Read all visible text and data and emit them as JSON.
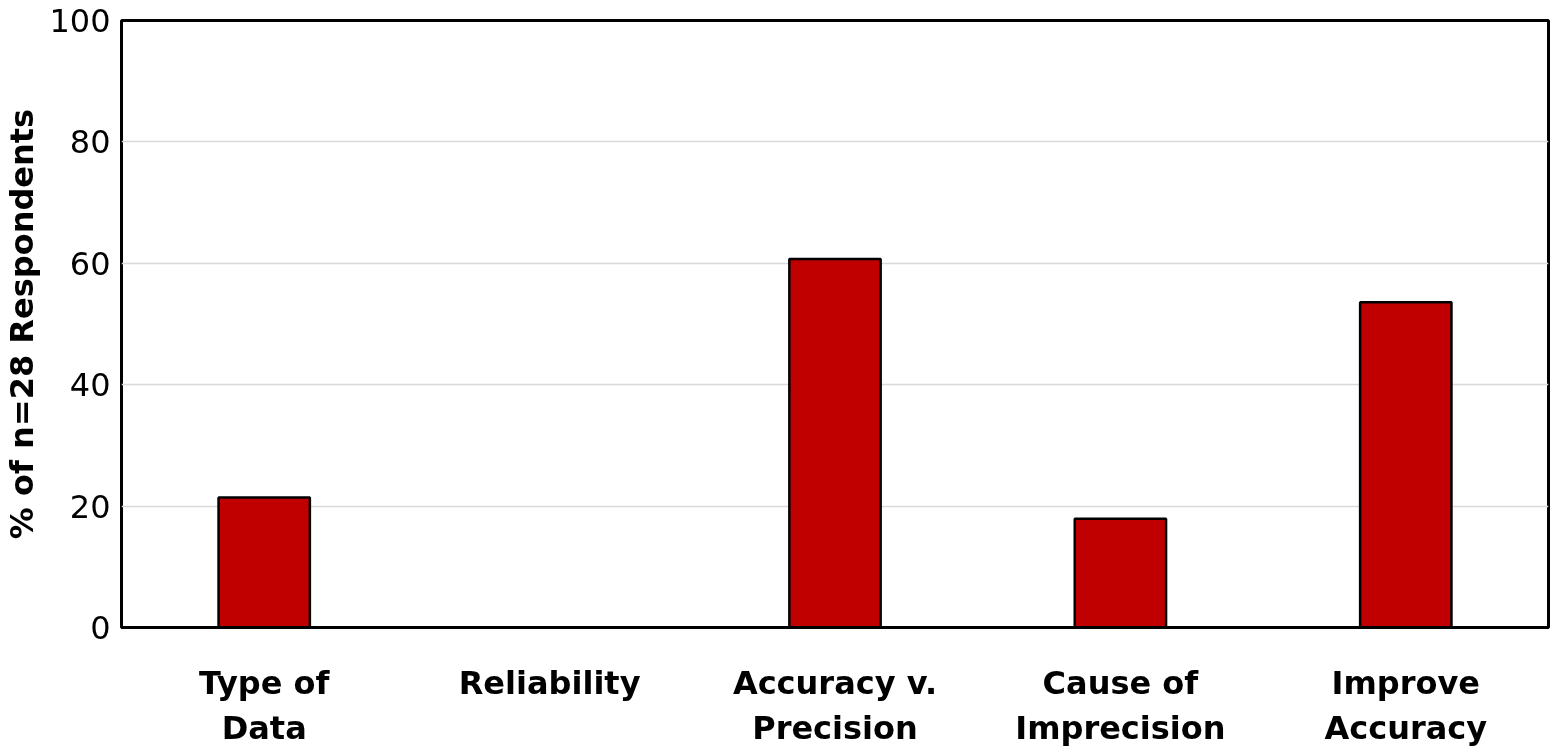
{
  "chart_data": {
    "type": "bar",
    "ylabel": "% of n=28 Respondents",
    "categories": [
      "Type of Data",
      "Reliability",
      "Accuracy v. Precision",
      "Cause of Imprecision",
      "Improve Accuracy"
    ],
    "values": [
      21.4,
      0,
      60.7,
      17.9,
      53.6
    ],
    "color": "#c00000",
    "ylim": [
      0,
      100
    ],
    "yticks": [
      0,
      20,
      40,
      60,
      80,
      100
    ],
    "grid": "y"
  }
}
